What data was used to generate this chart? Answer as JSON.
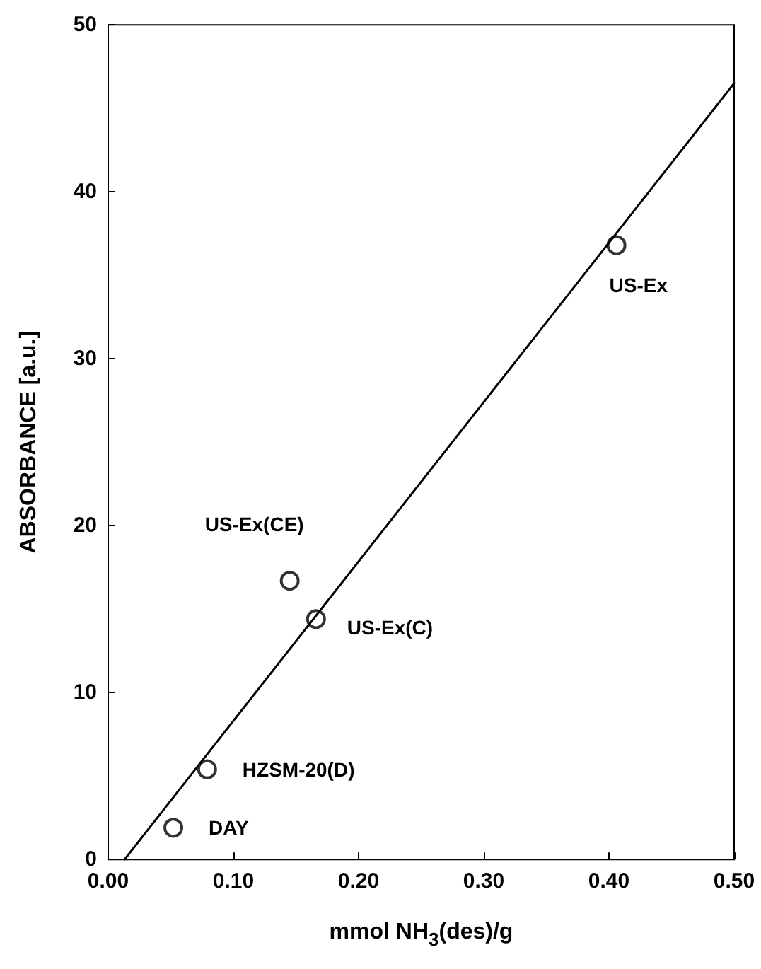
{
  "chart_data": {
    "type": "scatter",
    "xlabel": "mmol NH$_{3}$(des)/g",
    "ylabel": "ABSORBANCE [a.u.]",
    "xlim": [
      0,
      0.5
    ],
    "ylim": [
      0,
      50
    ],
    "xticks": [
      {
        "value": 0,
        "label": "0.00"
      },
      {
        "value": 0.1,
        "label": "0.10"
      },
      {
        "value": 0.2,
        "label": "0.20"
      },
      {
        "value": 0.3,
        "label": "0.30"
      },
      {
        "value": 0.4,
        "label": "0.40"
      },
      {
        "value": 0.5,
        "label": "0.50"
      }
    ],
    "yticks": [
      0,
      10,
      20,
      30,
      40,
      50
    ],
    "grid": false,
    "marker": "circle",
    "series": [
      {
        "color": "#000000",
        "x": [
          0.052,
          0.079,
          0.145,
          0.166,
          0.406
        ],
        "values": [
          1.9,
          5.4,
          16.7,
          14.4,
          36.8
        ]
      },
      {
        "type": "line",
        "color": "#000000",
        "marker": "none",
        "line_style": "solid",
        "x": [
          0.013,
          0.5
        ],
        "values": [
          0,
          46.5
        ]
      }
    ],
    "annotations": [
      {
        "text": "DAY",
        "x": 0.052,
        "y": 1.9
      },
      {
        "text": "HZSM-20(D)",
        "x": 0.079,
        "y": 5.4
      },
      {
        "text": "US-Ex(CE)",
        "x": 0.145,
        "y": 16.7
      },
      {
        "text": "US-Ex(C)",
        "x": 0.166,
        "y": 14.4
      },
      {
        "text": "US-Ex",
        "x": 0.406,
        "y": 36.8
      }
    ]
  }
}
